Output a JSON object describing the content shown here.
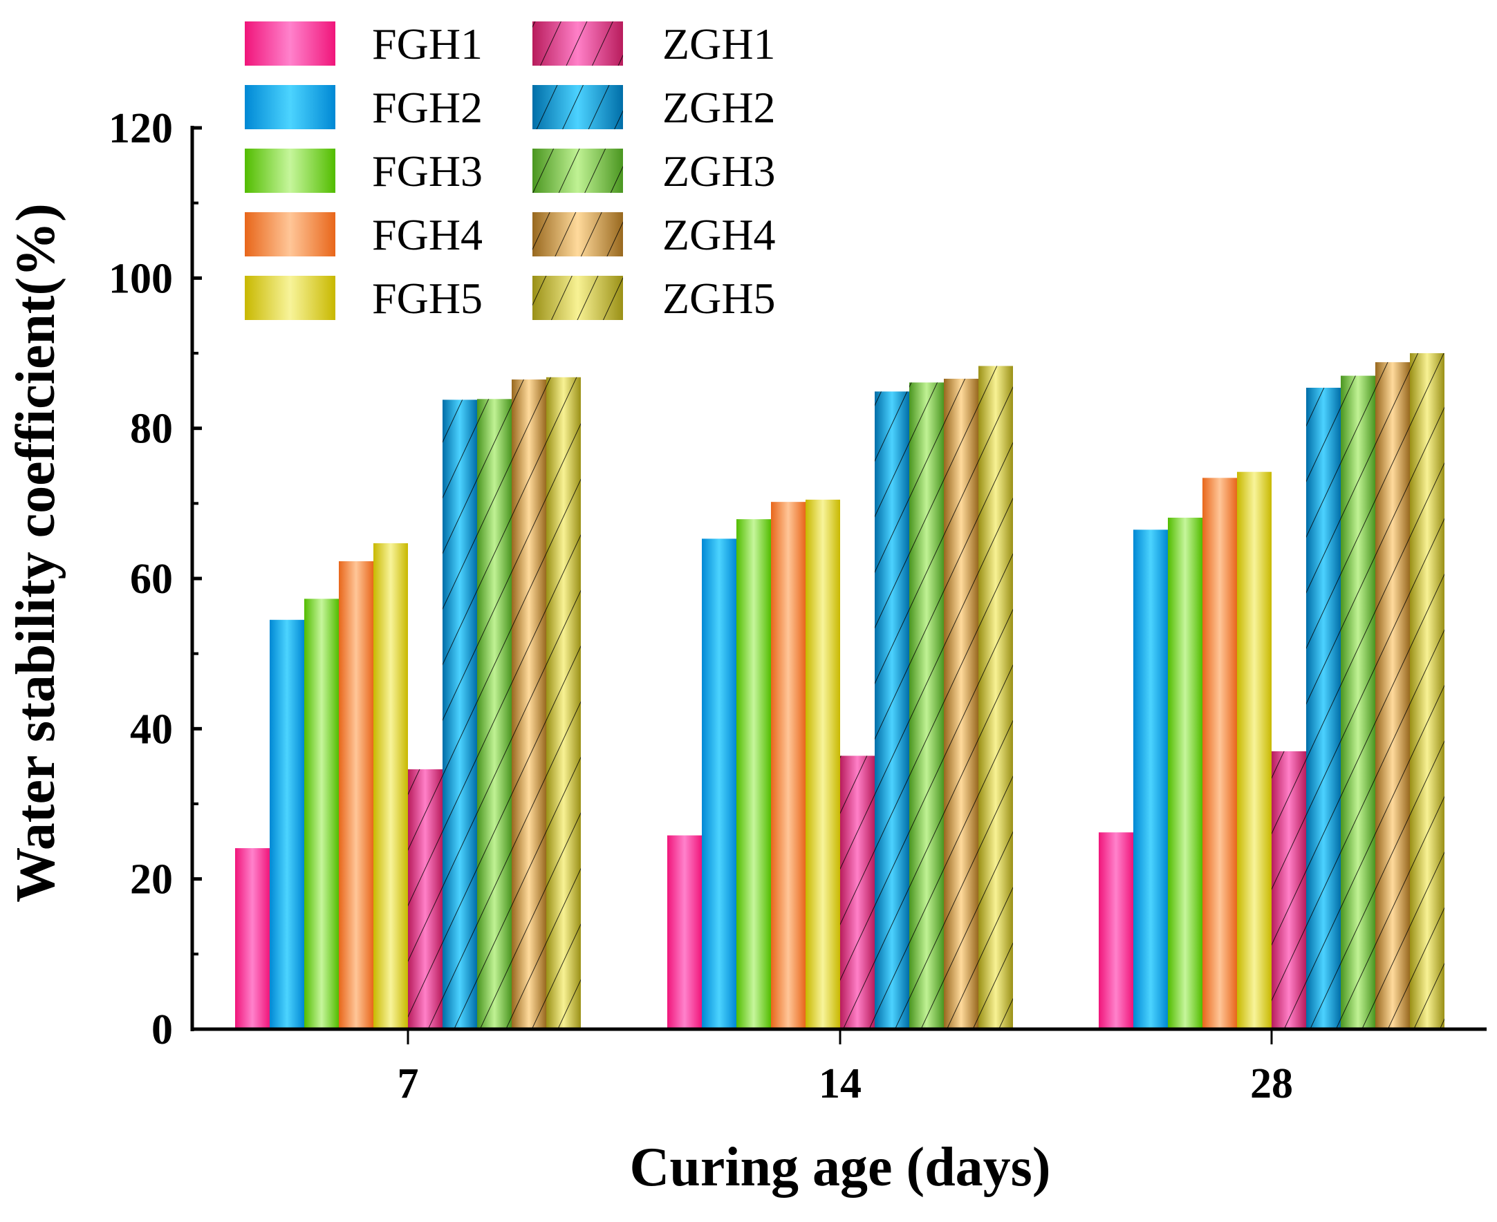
{
  "chart_data": {
    "type": "bar",
    "title": "",
    "xlabel": "Curing age (days)",
    "ylabel": "Water stability coefficient(%)",
    "ylim": [
      0,
      120
    ],
    "yticks": [
      "0",
      "20",
      "40",
      "60",
      "80",
      "100",
      "120"
    ],
    "categories": [
      "7",
      "14",
      "28"
    ],
    "legend_position": "top-left",
    "series": [
      {
        "name": "FGH1",
        "values": [
          24.1,
          25.8,
          26.2
        ],
        "edge": "#f0157a",
        "light": "#ff82cc",
        "hatch": false
      },
      {
        "name": "FGH2",
        "values": [
          54.5,
          65.3,
          66.5
        ],
        "edge": "#0088d4",
        "light": "#4cd4ff",
        "hatch": false
      },
      {
        "name": "FGH3",
        "values": [
          57.3,
          67.9,
          68.1
        ],
        "edge": "#52bc00",
        "light": "#c6f69c",
        "hatch": false
      },
      {
        "name": "FGH4",
        "values": [
          62.3,
          70.2,
          73.4
        ],
        "edge": "#e8661a",
        "light": "#ffc698",
        "hatch": false
      },
      {
        "name": "FGH5",
        "values": [
          64.7,
          70.5,
          74.2
        ],
        "edge": "#c8b800",
        "light": "#f8f49a",
        "hatch": false
      },
      {
        "name": "ZGH1",
        "values": [
          34.6,
          36.4,
          37.0
        ],
        "edge": "#b81c5c",
        "light": "#ff80c8",
        "hatch": true
      },
      {
        "name": "ZGH2",
        "values": [
          83.8,
          84.9,
          85.4
        ],
        "edge": "#006ea8",
        "light": "#4cd2ff",
        "hatch": true
      },
      {
        "name": "ZGH3",
        "values": [
          83.9,
          86.1,
          87.0
        ],
        "edge": "#4a9620",
        "light": "#c0f294",
        "hatch": true
      },
      {
        "name": "ZGH4",
        "values": [
          86.5,
          86.6,
          88.8
        ],
        "edge": "#98681e",
        "light": "#ffda9c",
        "hatch": true
      },
      {
        "name": "ZGH5",
        "values": [
          86.8,
          88.3,
          90.0
        ],
        "edge": "#9a9016",
        "light": "#f8f294",
        "hatch": true
      }
    ]
  }
}
